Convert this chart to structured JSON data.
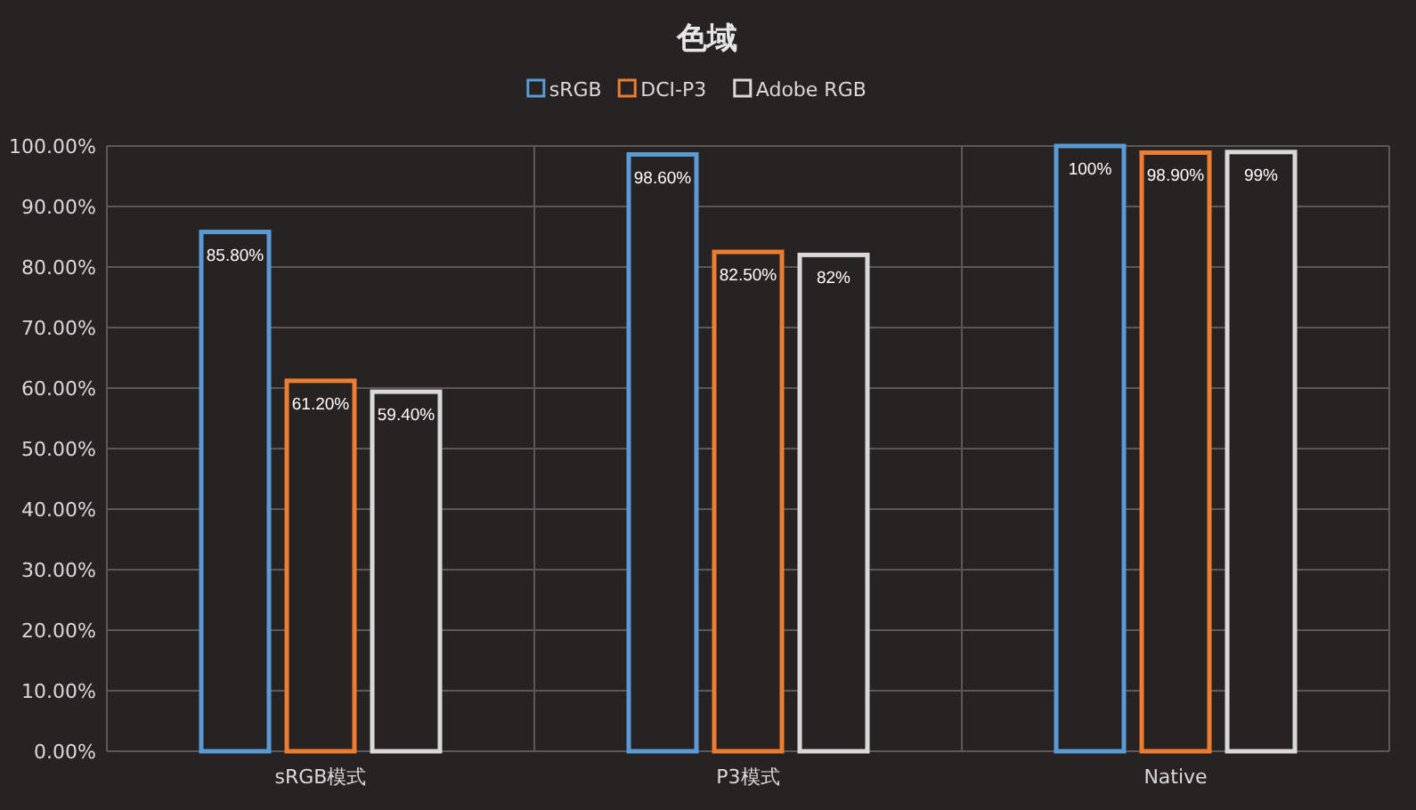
{
  "chart_data": {
    "type": "bar",
    "title": "色域",
    "categories": [
      "sRGB模式",
      "P3模式",
      "Native"
    ],
    "series": [
      {
        "name": "sRGB",
        "color": "#5b9bd5",
        "values": [
          85.8,
          98.6,
          100
        ],
        "value_labels": [
          "85.80%",
          "98.60%",
          "100%"
        ]
      },
      {
        "name": "DCI-P3",
        "color": "#ed7d31",
        "values": [
          61.2,
          82.5,
          98.9
        ],
        "value_labels": [
          "61.20%",
          "82.50%",
          "98.90%"
        ]
      },
      {
        "name": "Adobe RGB",
        "color": "#d9d9d9",
        "values": [
          59.4,
          82,
          99
        ],
        "value_labels": [
          "59.40%",
          "82%",
          "99%"
        ]
      }
    ],
    "ylim": [
      0,
      100
    ],
    "yticks": [
      {
        "value": 0,
        "label": "0.00%"
      },
      {
        "value": 10,
        "label": "10.00%"
      },
      {
        "value": 20,
        "label": "20.00%"
      },
      {
        "value": 30,
        "label": "30.00%"
      },
      {
        "value": 40,
        "label": "40.00%"
      },
      {
        "value": 50,
        "label": "50.00%"
      },
      {
        "value": 60,
        "label": "60.00%"
      },
      {
        "value": 70,
        "label": "70.00%"
      },
      {
        "value": 80,
        "label": "80.00%"
      },
      {
        "value": 90,
        "label": "90.00%"
      },
      {
        "value": 100,
        "label": "100.00%"
      }
    ],
    "grid": true,
    "legend": "top"
  }
}
